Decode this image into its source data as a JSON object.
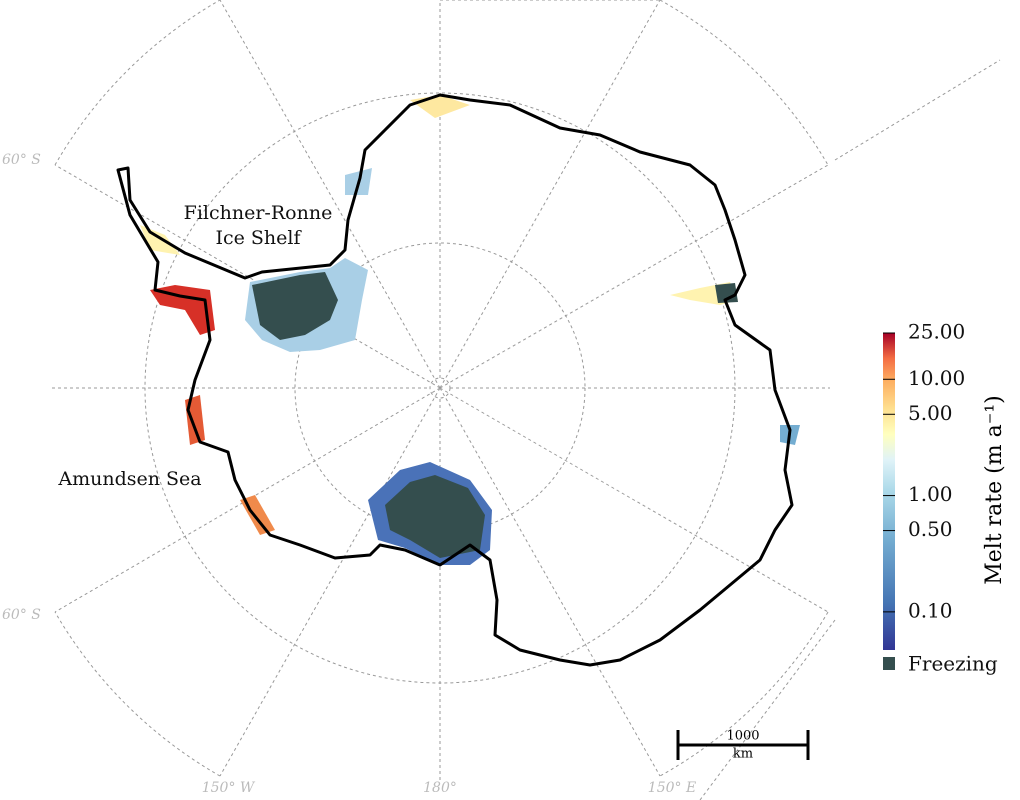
{
  "map": {
    "labels": {
      "filchner_ronne": [
        "Filchner-Ronne",
        "Ice Shelf"
      ],
      "amundsen": "Amundsen Sea"
    },
    "graticule_labels": [
      "60° S",
      "60° S",
      "150° W",
      "180°",
      "150° E"
    ],
    "scale_bar": {
      "value": "1000",
      "unit": "km"
    },
    "colorbar": {
      "title": "Melt rate (m a⁻¹)",
      "log": true,
      "lim": [
        0.047,
        25
      ],
      "ticks": [
        {
          "value": 25,
          "label": "25.00"
        },
        {
          "value": 10,
          "label": "10.00"
        },
        {
          "value": 5,
          "label": "5.00"
        },
        {
          "value": 1,
          "label": "1.00"
        },
        {
          "value": 0.5,
          "label": "0.50"
        },
        {
          "value": 0.1,
          "label": "0.10"
        }
      ],
      "freezing_label": "Freezing",
      "freezing_color": "#344e4e"
    }
  }
}
